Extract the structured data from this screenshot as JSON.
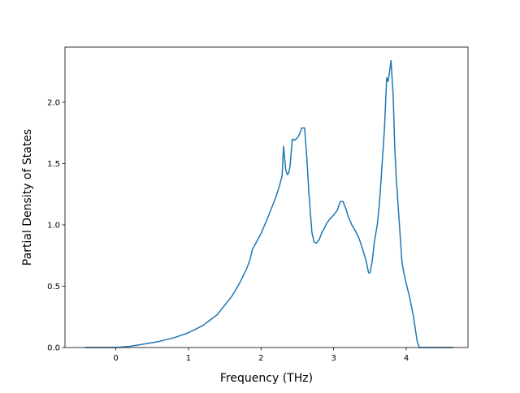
{
  "chart_data": {
    "type": "line",
    "title": "",
    "xlabel": "Frequency (THz)",
    "ylabel": "Partial Density of States",
    "xlim": [
      -0.7,
      4.85
    ],
    "ylim": [
      0.0,
      2.45
    ],
    "x_ticks": [
      {
        "value": 0,
        "label": "0"
      },
      {
        "value": 1,
        "label": "1"
      },
      {
        "value": 2,
        "label": "2"
      },
      {
        "value": 3,
        "label": "3"
      },
      {
        "value": 4,
        "label": "4"
      }
    ],
    "y_ticks": [
      {
        "value": 0.0,
        "label": "0.0"
      },
      {
        "value": 0.5,
        "label": "0.5"
      },
      {
        "value": 1.0,
        "label": "1.0"
      },
      {
        "value": 1.5,
        "label": "1.5"
      },
      {
        "value": 2.0,
        "label": "2.0"
      }
    ],
    "grid": false,
    "legend": "none",
    "series": [
      {
        "color": "#1f77b4",
        "x": [
          -0.43,
          -0.2,
          0.0,
          0.2,
          0.4,
          0.6,
          0.8,
          1.0,
          1.2,
          1.4,
          1.6,
          1.7,
          1.8,
          1.85,
          1.88,
          1.9,
          2.0,
          2.1,
          2.2,
          2.25,
          2.29,
          2.31,
          2.34,
          2.36,
          2.38,
          2.4,
          2.43,
          2.46,
          2.5,
          2.53,
          2.56,
          2.6,
          2.63,
          2.66,
          2.7,
          2.73,
          2.76,
          2.8,
          2.84,
          2.87,
          2.9,
          2.95,
          3.0,
          3.05,
          3.09,
          3.13,
          3.17,
          3.2,
          3.25,
          3.3,
          3.35,
          3.4,
          3.45,
          3.48,
          3.5,
          3.53,
          3.56,
          3.6,
          3.63,
          3.66,
          3.7,
          3.73,
          3.75,
          3.77,
          3.79,
          3.82,
          3.84,
          3.86,
          3.9,
          3.94,
          3.97,
          4.0,
          4.05,
          4.1,
          4.15,
          4.18,
          4.2,
          4.22,
          4.3,
          4.5,
          4.65
        ],
        "y": [
          0.0,
          0.0,
          0.0,
          0.01,
          0.03,
          0.05,
          0.08,
          0.12,
          0.18,
          0.27,
          0.42,
          0.52,
          0.64,
          0.72,
          0.8,
          0.82,
          0.93,
          1.07,
          1.22,
          1.31,
          1.4,
          1.64,
          1.45,
          1.41,
          1.42,
          1.48,
          1.7,
          1.69,
          1.71,
          1.74,
          1.79,
          1.79,
          1.55,
          1.25,
          0.94,
          0.86,
          0.85,
          0.88,
          0.94,
          0.97,
          1.01,
          1.05,
          1.08,
          1.12,
          1.19,
          1.19,
          1.13,
          1.07,
          1.0,
          0.95,
          0.89,
          0.8,
          0.7,
          0.61,
          0.61,
          0.7,
          0.86,
          1.0,
          1.17,
          1.43,
          1.79,
          2.2,
          2.17,
          2.25,
          2.34,
          2.05,
          1.65,
          1.4,
          1.05,
          0.7,
          0.6,
          0.52,
          0.4,
          0.25,
          0.05,
          0.0,
          0.0,
          0.0,
          0.0,
          0.0,
          0.0
        ]
      }
    ]
  }
}
